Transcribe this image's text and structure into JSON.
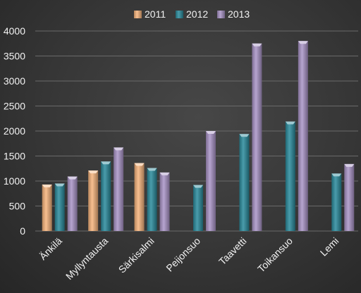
{
  "chart_data": {
    "type": "bar",
    "title": "",
    "xlabel": "",
    "ylabel": "",
    "categories": [
      "Änkilä",
      "Myllyntausta",
      "Särkisalmi",
      "Peijonsuo",
      "Taavetti",
      "Toikansuo",
      "Lemi"
    ],
    "series": [
      {
        "name": "2011",
        "color": "#f6b47c",
        "values": [
          930,
          1210,
          1360,
          null,
          null,
          null,
          null
        ]
      },
      {
        "name": "2012",
        "color": "#2a8a9c",
        "values": [
          950,
          1390,
          1260,
          920,
          1940,
          2190,
          1150
        ]
      },
      {
        "name": "2013",
        "color": "#a994c6",
        "values": [
          1090,
          1670,
          1170,
          2000,
          3750,
          3800,
          1340
        ]
      }
    ],
    "ylim": [
      0,
      4000
    ],
    "yticks": [
      0,
      500,
      1000,
      1500,
      2000,
      2500,
      3000,
      3500,
      4000
    ],
    "grid": true,
    "legend_position": "top-center"
  }
}
